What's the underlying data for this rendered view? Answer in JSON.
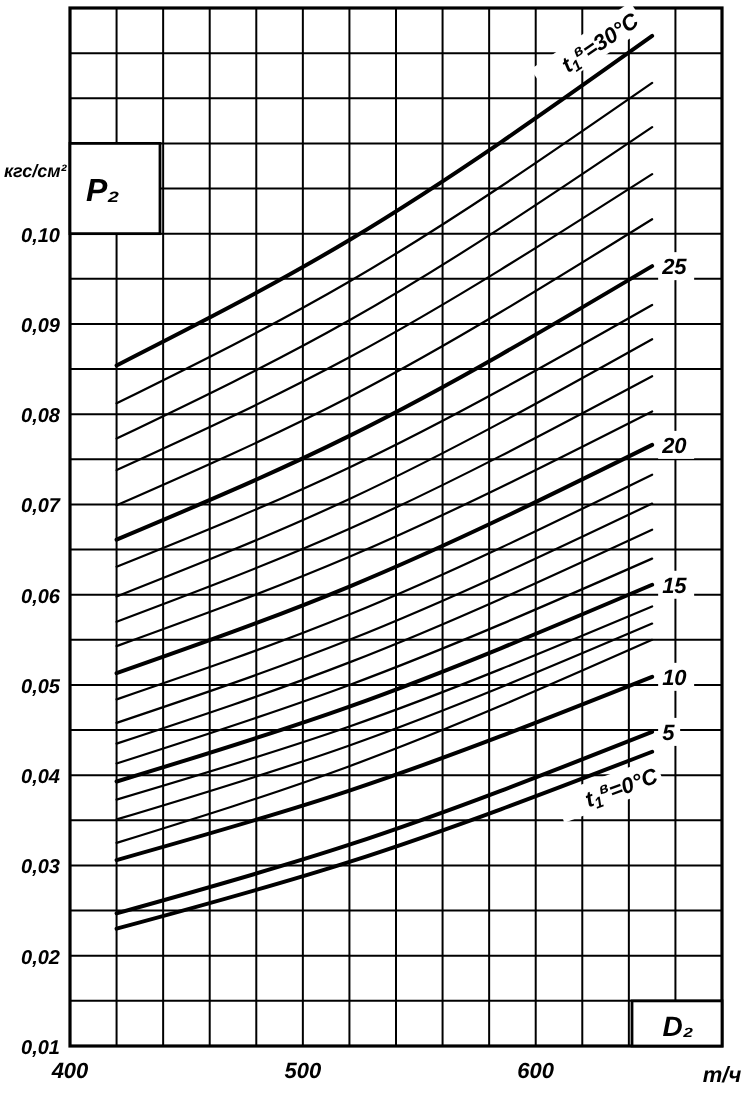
{
  "chart_data": {
    "type": "line",
    "xlabel": "D₂",
    "ylabel": "P₂",
    "annotations": [
      "кгс/см²",
      "т/ч"
    ],
    "x": [
      420,
      520,
      650
    ],
    "xlim": [
      400,
      680
    ],
    "xticks": [
      400,
      {
        "value": 420,
        "label": null
      },
      {
        "value": 440,
        "label": null
      },
      {
        "value": 460,
        "label": null
      },
      {
        "value": 480,
        "label": null
      },
      500,
      {
        "value": 520,
        "label": null
      },
      {
        "value": 540,
        "label": null
      },
      {
        "value": 560,
        "label": null
      },
      {
        "value": 580,
        "label": null
      },
      600,
      {
        "value": 620,
        "label": null
      },
      {
        "value": 640,
        "label": null
      },
      {
        "value": 660,
        "label": null
      }
    ],
    "ylim": [
      0.01,
      0.125
    ],
    "yticks": [
      {
        "value": 0.01,
        "label": "0,01"
      },
      {
        "value": 0.015,
        "label": null
      },
      {
        "value": 0.02,
        "label": "0,02"
      },
      {
        "value": 0.025,
        "label": null
      },
      {
        "value": 0.03,
        "label": "0,03"
      },
      {
        "value": 0.035,
        "label": null
      },
      {
        "value": 0.04,
        "label": "0,04"
      },
      {
        "value": 0.045,
        "label": null
      },
      {
        "value": 0.05,
        "label": "0,05"
      },
      {
        "value": 0.055,
        "label": null
      },
      {
        "value": 0.06,
        "label": "0,06"
      },
      {
        "value": 0.065,
        "label": null
      },
      {
        "value": 0.07,
        "label": "0,07"
      },
      {
        "value": 0.075,
        "label": null
      },
      {
        "value": 0.08,
        "label": "0,08"
      },
      {
        "value": 0.085,
        "label": null
      },
      {
        "value": 0.09,
        "label": "0,09"
      },
      {
        "value": 0.095,
        "label": null
      },
      {
        "value": 0.1,
        "label": "0,10"
      },
      {
        "value": 0.105,
        "label": null
      },
      {
        "value": 0.11,
        "label": null
      },
      {
        "value": 0.115,
        "label": null
      },
      {
        "value": 0.12,
        "label": null
      }
    ],
    "grid": true,
    "marker": "none",
    "line_style": "solid",
    "series": [
      {
        "name": "t$_{1}$$^{в}$=30°C",
        "color": "#000000",
        "values": [
          0.0854,
          0.0993,
          0.1219
        ]
      },
      {
        "color": "#000000",
        "values": [
          0.0812,
          0.0947,
          0.1167
        ]
      },
      {
        "color": "#000000",
        "values": [
          0.0773,
          0.0904,
          0.1118
        ]
      },
      {
        "color": "#000000",
        "values": [
          0.0738,
          0.0863,
          0.1066
        ]
      },
      {
        "color": "#000000",
        "values": [
          0.0699,
          0.0819,
          0.1016
        ]
      },
      {
        "name": "25",
        "color": "#000000",
        "values": [
          0.0661,
          0.0776,
          0.0964
        ]
      },
      {
        "color": "#000000",
        "values": [
          0.0631,
          0.0741,
          0.0921
        ]
      },
      {
        "color": "#000000",
        "values": [
          0.0598,
          0.0706,
          0.0883
        ]
      },
      {
        "color": "#000000",
        "values": [
          0.057,
          0.0673,
          0.0842
        ]
      },
      {
        "color": "#000000",
        "values": [
          0.0543,
          0.0642,
          0.0803
        ]
      },
      {
        "name": "20",
        "color": "#000000",
        "values": [
          0.0513,
          0.0609,
          0.0766
        ]
      },
      {
        "color": "#000000",
        "values": [
          0.0484,
          0.0578,
          0.0733
        ]
      },
      {
        "color": "#000000",
        "values": [
          0.0458,
          0.055,
          0.0701
        ]
      },
      {
        "color": "#000000",
        "values": [
          0.0435,
          0.0525,
          0.0672
        ]
      },
      {
        "color": "#000000",
        "values": [
          0.0413,
          0.05,
          0.064
        ]
      },
      {
        "name": "15",
        "color": "#000000",
        "values": [
          0.0393,
          0.0476,
          0.0611
        ]
      },
      {
        "color": "#000000",
        "values": [
          0.0373,
          0.0454,
          0.0587
        ]
      },
      {
        "color": "#000000",
        "values": [
          0.0351,
          0.0433,
          0.0568
        ]
      },
      {
        "color": "#000000",
        "values": [
          0.0325,
          0.041,
          0.055
        ]
      },
      {
        "name": "10",
        "color": "#000000",
        "values": [
          0.0306,
          0.0383,
          0.0509
        ]
      },
      {
        "name": "5",
        "color": "#000000",
        "values": [
          0.0247,
          0.0323,
          0.0448
        ]
      },
      {
        "name": "t$_{1}$$^{в}$=0°C",
        "color": "#000000",
        "values": [
          0.023,
          0.0304,
          0.0426
        ]
      }
    ]
  }
}
